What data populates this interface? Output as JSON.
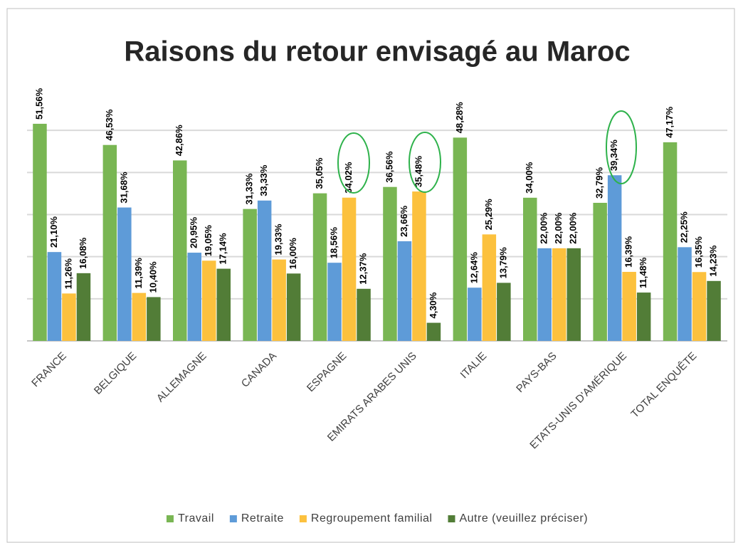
{
  "chart_data": {
    "type": "bar",
    "title": "Raisons du retour envisagé au Maroc",
    "categories": [
      "FRANCE",
      "BELGIQUE",
      "ALLEMAGNE",
      "CANADA",
      "ESPAGNE",
      "EMIRATS ARABES UNIS",
      "ITALIE",
      "PAYS-BAS",
      "ETATS-UNIS D'AMÉRIQUE",
      "TOTAL ENQUÊTE"
    ],
    "series": [
      {
        "name": "Travail",
        "color": "#79b653",
        "values": [
          51.56,
          46.53,
          42.86,
          31.33,
          35.05,
          36.56,
          48.28,
          34.0,
          32.79,
          47.17
        ],
        "value_labels": [
          "51,56%",
          "46,53%",
          "42,86%",
          "31,33%",
          "35,05%",
          "36,56%",
          "48,28%",
          "34,00%",
          "32,79%",
          "47,17%"
        ]
      },
      {
        "name": "Retraite",
        "color": "#5e9bd8",
        "values": [
          21.1,
          31.68,
          20.95,
          33.33,
          18.56,
          23.66,
          12.64,
          22.0,
          39.34,
          22.25
        ],
        "value_labels": [
          "21,10%",
          "31,68%",
          "20,95%",
          "33,33%",
          "18,56%",
          "23,66%",
          "12,64%",
          "22,00%",
          "39,34%",
          "22,25%"
        ]
      },
      {
        "name": "Regroupement familial",
        "color": "#fcc13e",
        "values": [
          11.26,
          11.39,
          19.05,
          19.33,
          34.02,
          35.48,
          25.29,
          22.0,
          16.39,
          16.35
        ],
        "value_labels": [
          "11,26%",
          "11,39%",
          "19,05%",
          "19,33%",
          "34,02%",
          "35,48%",
          "25,29%",
          "22,00%",
          "16,39%",
          "16,35%"
        ]
      },
      {
        "name": "Autre (veuillez préciser)",
        "color": "#527d37",
        "values": [
          16.08,
          10.4,
          17.14,
          16.0,
          12.37,
          4.3,
          13.79,
          22.0,
          11.48,
          14.23
        ],
        "value_labels": [
          "16,08%",
          "10,40%",
          "17,14%",
          "16,00%",
          "12,37%",
          "4,30%",
          "13,79%",
          "22,00%",
          "11,48%",
          "14,23%"
        ]
      }
    ],
    "ylim": [
      0,
      60
    ],
    "yticks": [
      0,
      10,
      20,
      30,
      40,
      50
    ],
    "grid": true,
    "legend": "bottom"
  }
}
